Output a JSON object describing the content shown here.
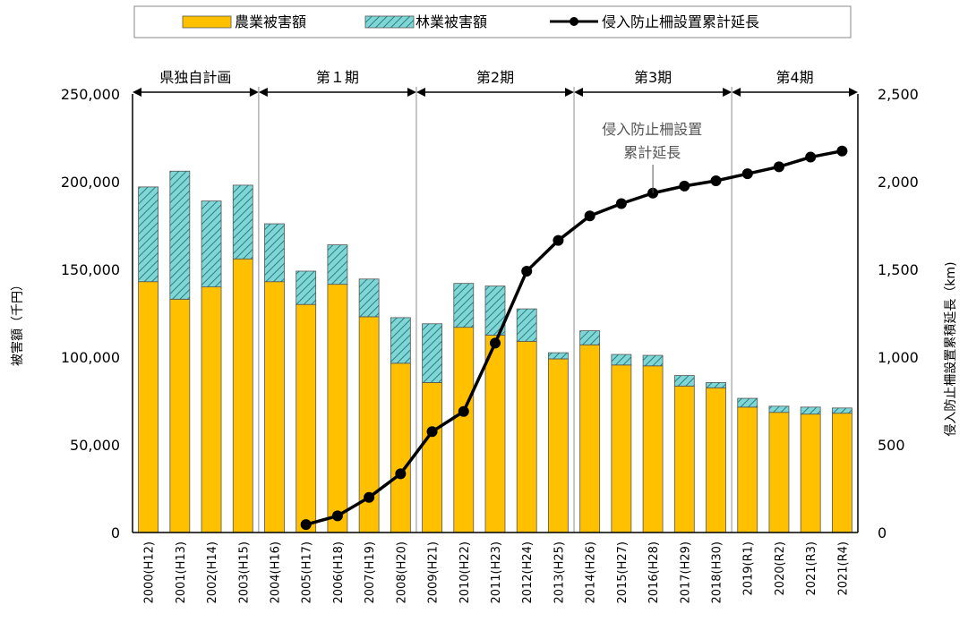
{
  "chart_data": {
    "type": "bar",
    "categories": [
      "2000(H12)",
      "2001(H13)",
      "2002(H14)",
      "2003(H15)",
      "2004(H16)",
      "2005(H17)",
      "2006(H18)",
      "2007(H19)",
      "2008(H20)",
      "2009(H21)",
      "2010(H22)",
      "2011(H23)",
      "2012(H24)",
      "2013(H25)",
      "2014(H26)",
      "2015(H27)",
      "2016(H28)",
      "2017(H29)",
      "2018(H30)",
      "2019(R1)",
      "2020(R2)",
      "2021(R3)",
      "2021(R4)"
    ],
    "series": [
      {
        "name": "農業被害額",
        "type": "bar",
        "stack": "damage",
        "axis": "left",
        "color": "#ffc000",
        "values": [
          143000,
          133000,
          140000,
          156000,
          143000,
          130000,
          141500,
          123000,
          96500,
          85500,
          117000,
          112500,
          109000,
          99000,
          107000,
          95500,
          95000,
          83500,
          82500,
          71500,
          68500,
          67500,
          68000
        ]
      },
      {
        "name": "林業被害額",
        "type": "bar",
        "stack": "damage",
        "axis": "left",
        "color": "#7fd6d4",
        "pattern": "diagonal-hatch",
        "values": [
          54000,
          73000,
          49000,
          42000,
          33000,
          19000,
          22500,
          21500,
          26000,
          33500,
          25000,
          28000,
          18500,
          3500,
          8000,
          6000,
          6000,
          6000,
          3000,
          5000,
          3500,
          4000,
          3000
        ]
      },
      {
        "name": "侵入防止柵設置累計延長",
        "type": "line",
        "axis": "right",
        "color": "#000000",
        "values": [
          null,
          null,
          null,
          null,
          null,
          45,
          95,
          200,
          335,
          575,
          690,
          1080,
          1490,
          1665,
          1805,
          1875,
          1935,
          1975,
          2005,
          2045,
          2085,
          2140,
          2175
        ]
      }
    ],
    "y_left": {
      "label": "被害額（千円）",
      "range": [
        0,
        250000
      ],
      "ticks": [
        "0",
        "50,000",
        "100,000",
        "150,000",
        "200,000",
        "250,000"
      ]
    },
    "y_right": {
      "label": "侵入防止柵設置累積延長（km)",
      "range": [
        0,
        2500
      ],
      "ticks": [
        "0",
        "500",
        "1,000",
        "1,500",
        "2,000",
        "2,500"
      ]
    },
    "legend": {
      "position": "top",
      "entries": [
        "農業被害額",
        "林業被害額",
        "侵入防止柵設置累計延長"
      ]
    },
    "periods": [
      {
        "label": "県独自計画",
        "start": 0,
        "end": 4
      },
      {
        "label": "第１期",
        "start": 4,
        "end": 9
      },
      {
        "label": "第2期",
        "start": 9,
        "end": 14
      },
      {
        "label": "第3期",
        "start": 14,
        "end": 19
      },
      {
        "label": "第4期",
        "start": 19,
        "end": 23
      }
    ],
    "annotation": {
      "lines": [
        "侵入防止柵設置",
        "累計延長"
      ],
      "index": 17
    },
    "colors": {
      "agri": "#ffc000",
      "forest": "#7fd6d4",
      "line": "#000000"
    }
  }
}
